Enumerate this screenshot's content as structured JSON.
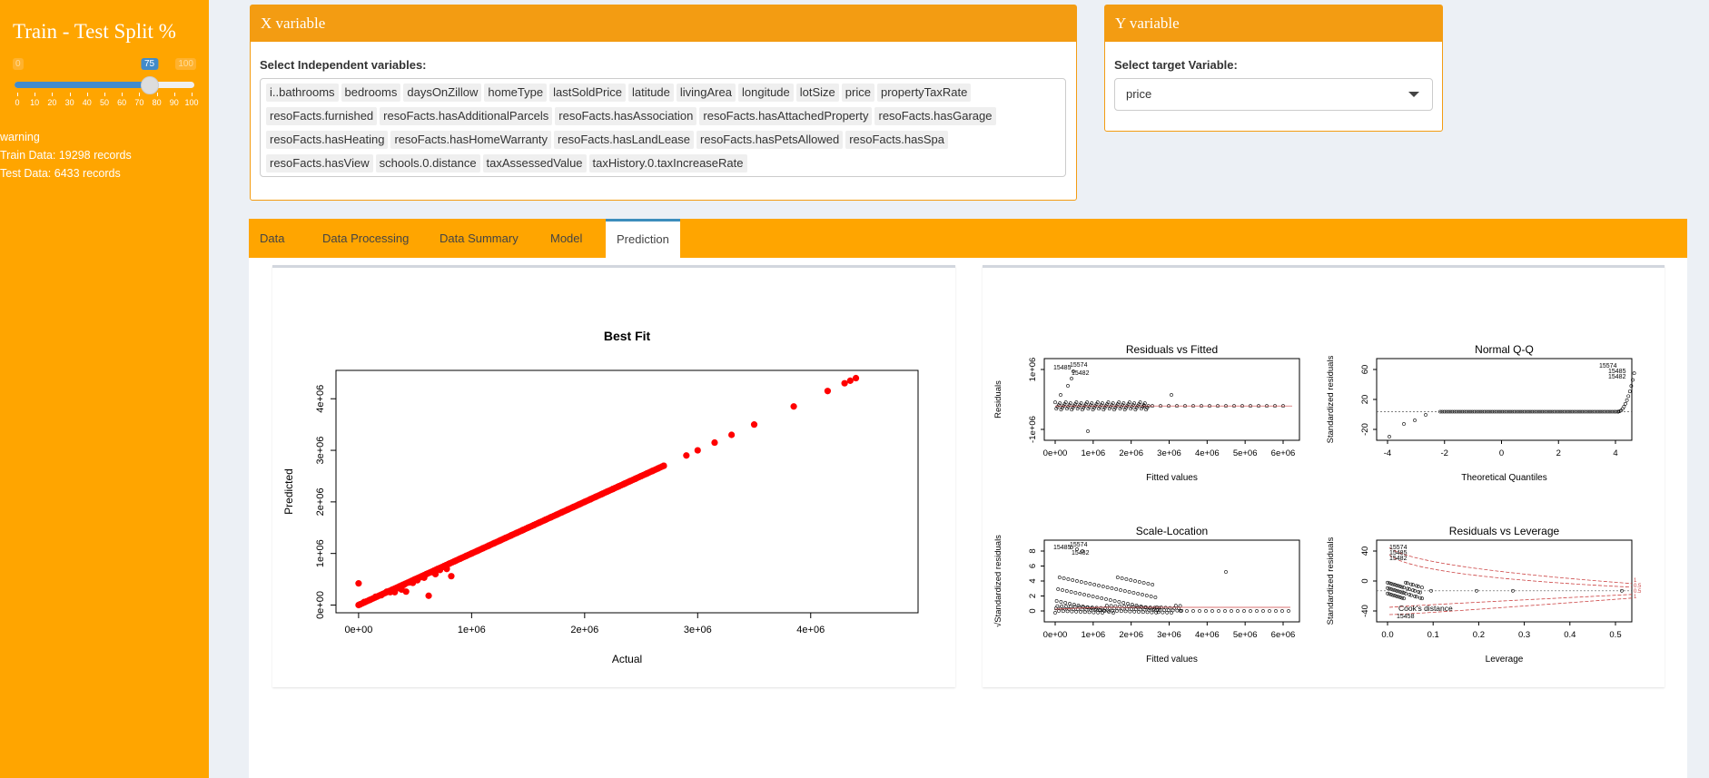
{
  "sidebar": {
    "title": "Train - Test Split %",
    "slider": {
      "min": 0,
      "max": 100,
      "value": 75,
      "min_label": "0",
      "max_label": "100",
      "value_label": "75",
      "ticks": [
        "0",
        "10",
        "20",
        "30",
        "40",
        "50",
        "60",
        "70",
        "80",
        "90",
        "100"
      ]
    },
    "warning": "warning",
    "train_info": "Train Data: 19298 records",
    "test_info": "Test Data: 6433 records"
  },
  "x_box": {
    "title": "X variable",
    "label": "Select Independent variables:",
    "selected": [
      "i..bathrooms",
      "bedrooms",
      "daysOnZillow",
      "homeType",
      "lastSoldPrice",
      "latitude",
      "livingArea",
      "longitude",
      "lotSize",
      "price",
      "propertyTaxRate",
      "resoFacts.furnished",
      "resoFacts.hasAdditionalParcels",
      "resoFacts.hasAssociation",
      "resoFacts.hasAttachedProperty",
      "resoFacts.hasGarage",
      "resoFacts.hasHeating",
      "resoFacts.hasHomeWarranty",
      "resoFacts.hasLandLease",
      "resoFacts.hasPetsAllowed",
      "resoFacts.hasSpa",
      "resoFacts.hasView",
      "schools.0.distance",
      "taxAssessedValue",
      "taxHistory.0.taxIncreaseRate"
    ]
  },
  "y_box": {
    "title": "Y variable",
    "label": "Select target Variable:",
    "selected": "price"
  },
  "tabs": [
    {
      "label": "Data",
      "active": false
    },
    {
      "label": "Data Processing",
      "active": false
    },
    {
      "label": "Data Summary",
      "active": false
    },
    {
      "label": "Model",
      "active": false
    },
    {
      "label": "Prediction",
      "active": true
    }
  ],
  "colors": {
    "sidebar": "#ffa500",
    "box_header": "#f39c12",
    "tabbar": "#ffa500",
    "active_tab_border": "#3c8dbc",
    "points": "#ff0000"
  },
  "chart_data": [
    {
      "type": "scatter",
      "title": "Best Fit",
      "xlabel": "Actual",
      "ylabel": "Predicted",
      "xlim": [
        -200000,
        4950000
      ],
      "ylim": [
        -150000,
        4550000
      ],
      "xticks": [
        "0e+00",
        "1e+06",
        "2e+06",
        "3e+06",
        "4e+06"
      ],
      "yticks": [
        "0e+00",
        "1e+06",
        "2e+06",
        "3e+06",
        "4e+06"
      ],
      "points": [
        [
          10000,
          10000
        ],
        [
          50000,
          60000
        ],
        [
          100000,
          100000
        ],
        [
          150000,
          160000
        ],
        [
          200000,
          190000
        ],
        [
          250000,
          260000
        ],
        [
          280000,
          250000
        ],
        [
          300000,
          300000
        ],
        [
          320000,
          250000
        ],
        [
          350000,
          330000
        ],
        [
          380000,
          300000
        ],
        [
          400000,
          390000
        ],
        [
          420000,
          260000
        ],
        [
          450000,
          440000
        ],
        [
          480000,
          430000
        ],
        [
          500000,
          500000
        ],
        [
          520000,
          480000
        ],
        [
          550000,
          540000
        ],
        [
          580000,
          530000
        ],
        [
          600000,
          600000
        ],
        [
          620000,
          180000
        ],
        [
          650000,
          640000
        ],
        [
          680000,
          600000
        ],
        [
          700000,
          700000
        ],
        [
          720000,
          680000
        ],
        [
          750000,
          740000
        ],
        [
          780000,
          700000
        ],
        [
          800000,
          800000
        ],
        [
          820000,
          560000
        ],
        [
          850000,
          850000
        ],
        [
          900000,
          900000
        ],
        [
          950000,
          950000
        ],
        [
          1000000,
          1000000
        ],
        [
          1050000,
          1050000
        ],
        [
          1100000,
          1100000
        ],
        [
          1150000,
          1150000
        ],
        [
          1200000,
          1200000
        ],
        [
          1250000,
          1250000
        ],
        [
          1300000,
          1300000
        ],
        [
          1350000,
          1350000
        ],
        [
          1400000,
          1400000
        ],
        [
          1450000,
          1450000
        ],
        [
          1500000,
          1500000
        ],
        [
          1550000,
          1550000
        ],
        [
          1600000,
          1600000
        ],
        [
          1650000,
          1650000
        ],
        [
          1700000,
          1700000
        ],
        [
          1750000,
          1750000
        ],
        [
          1800000,
          1800000
        ],
        [
          1850000,
          1850000
        ],
        [
          1900000,
          1900000
        ],
        [
          1950000,
          1950000
        ],
        [
          2000000,
          2000000
        ],
        [
          2050000,
          2050000
        ],
        [
          2100000,
          2100000
        ],
        [
          2150000,
          2150000
        ],
        [
          2200000,
          2200000
        ],
        [
          2250000,
          2250000
        ],
        [
          2300000,
          2300000
        ],
        [
          2350000,
          2350000
        ],
        [
          2400000,
          2400000
        ],
        [
          2450000,
          2450000
        ],
        [
          2500000,
          2500000
        ],
        [
          2550000,
          2550000
        ],
        [
          2600000,
          2600000
        ],
        [
          2650000,
          2650000
        ],
        [
          2700000,
          2700000
        ],
        [
          2900000,
          2900000
        ],
        [
          3000000,
          3000000
        ],
        [
          3150000,
          3150000
        ],
        [
          3300000,
          3300000
        ],
        [
          3500000,
          3500000
        ],
        [
          3850000,
          3850000
        ],
        [
          4150000,
          4150000
        ],
        [
          4300000,
          4300000
        ],
        [
          4350000,
          4350000
        ],
        [
          4400000,
          4400000
        ],
        [
          0,
          420000
        ]
      ]
    },
    {
      "type": "scatter",
      "title": "Residuals vs Fitted",
      "xlabel": "Fitted values",
      "ylabel": "Residuals",
      "xticks": [
        "0e+00",
        "1e+06",
        "2e+06",
        "3e+06",
        "4e+06",
        "5e+06",
        "6e+06"
      ],
      "yticks": [
        "-1e+06",
        "1e+06"
      ],
      "annotations": [
        "15485",
        "15574",
        "15482"
      ]
    },
    {
      "type": "scatter",
      "title": "Normal Q-Q",
      "xlabel": "Theoretical Quantiles",
      "ylabel": "Standardized residuals",
      "xticks": [
        "-4",
        "-2",
        "0",
        "2",
        "4"
      ],
      "yticks": [
        "-20",
        "20",
        "60"
      ],
      "annotations": [
        "15574",
        "15485",
        "15482"
      ]
    },
    {
      "type": "scatter",
      "title": "Scale-Location",
      "xlabel": "Fitted values",
      "ylabel": "√Standardized residuals",
      "xticks": [
        "0e+00",
        "1e+06",
        "2e+06",
        "3e+06",
        "4e+06",
        "5e+06",
        "6e+06"
      ],
      "yticks": [
        "0",
        "2",
        "4",
        "6",
        "8"
      ],
      "annotations": [
        "15485",
        "15574",
        "15482"
      ]
    },
    {
      "type": "scatter",
      "title": "Residuals vs Leverage",
      "xlabel": "Leverage",
      "ylabel": "Standardized residuals",
      "xticks": [
        "0.0",
        "0.1",
        "0.2",
        "0.3",
        "0.4",
        "0.5"
      ],
      "yticks": [
        "-40",
        "0",
        "40"
      ],
      "annotations": [
        "15574",
        "15485",
        "15482",
        "15458",
        "Cook's distance"
      ],
      "legend": [
        "1",
        "0.5",
        "0.5",
        "1"
      ]
    }
  ]
}
